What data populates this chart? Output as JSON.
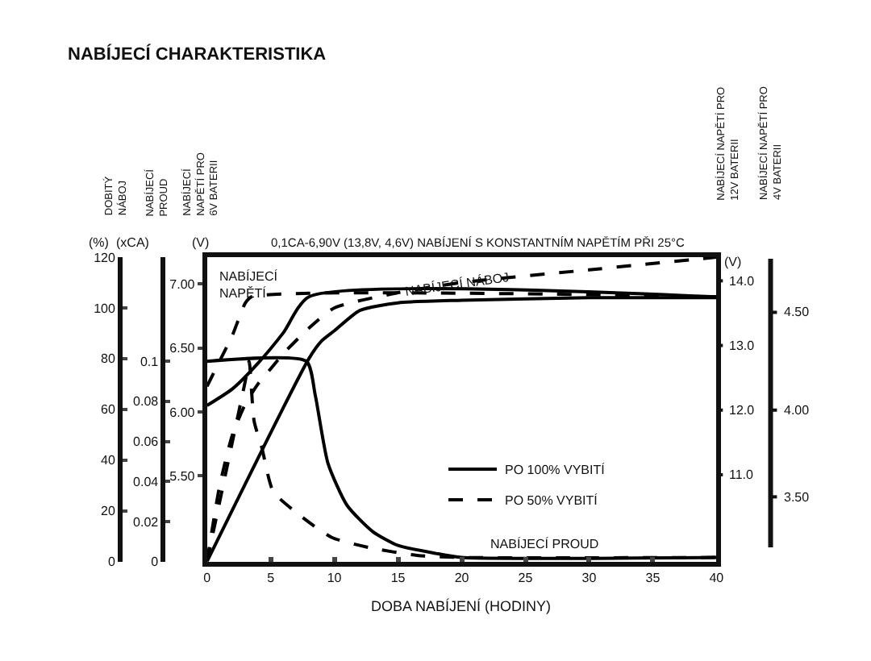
{
  "chart_data": {
    "type": "line",
    "title": "NABÍJECÍ CHARAKTERISTIKA",
    "subtitle": "0,1CA-6,90V (13,8V, 4,6V) NABÍJENÍ S KONSTANTNÍM NAPĚTÍM PŘI 25°C",
    "xlabel": "DOBA NABÍJENÍ (HODINY)",
    "ylabel": "DOBITÝ\nNÁBOJ",
    "y2label": "NABÍJECÍ\nPROUD",
    "y3label": "NABÍJECÍ\nNAPĚTÍ PRO\n6V BATERII",
    "annotations": [
      "(%)",
      "(xCA)",
      "(V)",
      "(V)",
      "NABÍJECÍ\nNAPĚTÍ",
      {
        "text": "NABÍJECÍ NÁBOJ",
        "x": 19.6,
        "y": 109
      },
      "NABÍJECÍ PROUD",
      "NABÍJECÍ NAPĚTÍ PRO\n12V BATERII",
      "14.0",
      "13.0",
      "12.0",
      "11.0",
      "NABÍJECÍ NAPĚTÍ PRO\n4V BATERII",
      "4.50",
      "4.00",
      "3.50"
    ],
    "xlim": [
      0,
      40
    ],
    "xticks": [
      0,
      5,
      10,
      15,
      20,
      25,
      30,
      35,
      40
    ],
    "ylim": [
      0,
      120
    ],
    "yticks": [
      0,
      20,
      40,
      60,
      80,
      100,
      120
    ],
    "y2lim": [
      0,
      0.152
    ],
    "y2ticks": [
      0,
      0.02,
      0.04,
      0.06,
      0.08,
      0.1
    ],
    "y3lim": [
      4.83,
      7.21
    ],
    "y3ticks": [
      {
        "value": 5.5,
        "label": "5.50"
      },
      {
        "value": 6,
        "label": "6.00"
      },
      {
        "value": 6.5,
        "label": "6.50"
      },
      {
        "value": 7,
        "label": "7.00"
      }
    ],
    "legend": "bottom right",
    "series": [
      {
        "name": "PO 100% VYBITÍ",
        "color": "#000000",
        "line_style": "solid",
        "axis": "y3",
        "x": [
          0,
          2,
          4,
          6,
          8,
          40
        ],
        "values": [
          6.05,
          6.18,
          6.38,
          6.62,
          6.9,
          6.9
        ]
      },
      {
        "color": "#000000",
        "line_style": "solid",
        "x": [
          0,
          8,
          9,
          10,
          12,
          15,
          20,
          30,
          40
        ],
        "values": [
          0,
          80,
          87,
          91,
          99,
          102,
          103,
          104,
          104
        ]
      },
      {
        "color": "#000000",
        "line_style": "solid",
        "axis": "y2",
        "x": [
          0,
          7.8,
          8.5,
          9.5,
          11,
          13,
          15,
          18,
          20,
          40
        ],
        "values": [
          0.1,
          0.1,
          0.083,
          0.049,
          0.028,
          0.015,
          0.008,
          0.004,
          0.002,
          0.002
        ]
      },
      {
        "name": "PO 50% VYBITÍ",
        "color": "#000000",
        "line_style": "dashed",
        "axis": "y3",
        "x": [
          0,
          1,
          2,
          3,
          3.5,
          40
        ],
        "values": [
          6.2,
          6.4,
          6.6,
          6.85,
          6.9,
          6.9
        ]
      },
      {
        "color": "#000000",
        "line_style": "dashed",
        "x": [
          0,
          1,
          2,
          3,
          4,
          5,
          6,
          8,
          10,
          15,
          20,
          30,
          40
        ],
        "values": [
          0,
          30,
          50,
          62,
          70,
          76,
          82,
          92,
          100,
          106,
          110,
          115,
          120
        ]
      },
      {
        "color": "#000000",
        "line_style": "dashed",
        "axis": "y2",
        "x": [
          0,
          1,
          2,
          3,
          3.3,
          3.7,
          4.3,
          5.2,
          7.3,
          9.8,
          12.7,
          16.5,
          20,
          40
        ],
        "values": [
          0,
          0.03,
          0.06,
          0.09,
          0.1,
          0.07,
          0.057,
          0.035,
          0.023,
          0.012,
          0.007,
          0.003,
          0.002,
          0.002
        ]
      }
    ]
  }
}
